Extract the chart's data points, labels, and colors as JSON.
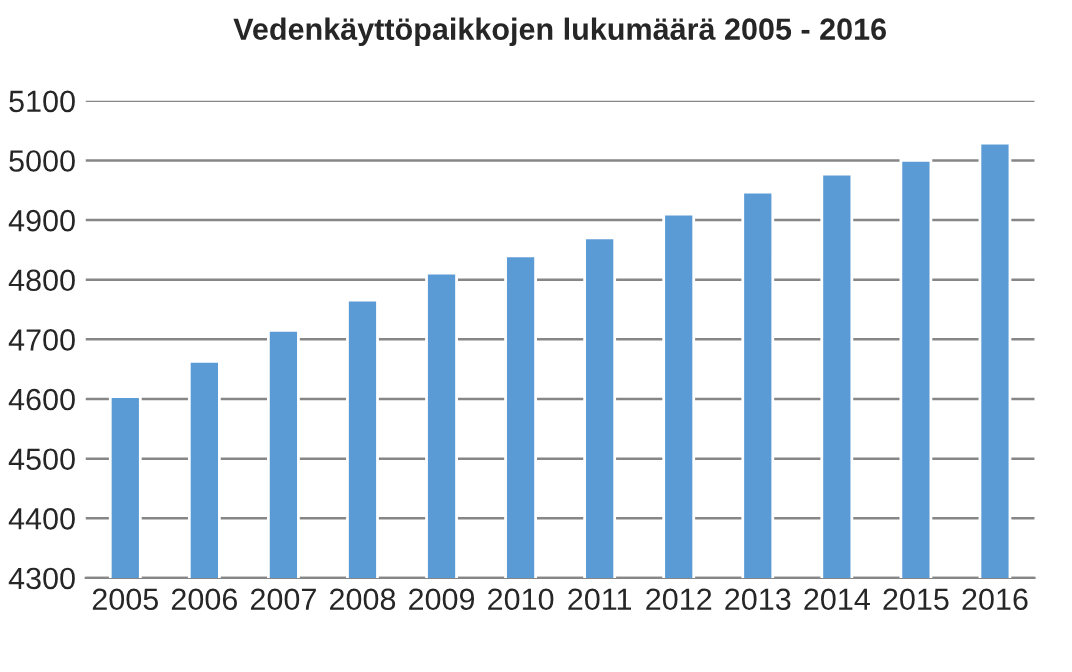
{
  "chart_data": {
    "type": "bar",
    "title": "Vedenkäyttöpaikkojen lukumäärä 2005 - 2016",
    "categories": [
      "2005",
      "2006",
      "2007",
      "2008",
      "2009",
      "2010",
      "2011",
      "2012",
      "2013",
      "2014",
      "2015",
      "2016"
    ],
    "values": [
      4604,
      4663,
      4715,
      4766,
      4811,
      4840,
      4870,
      4910,
      4947,
      4977,
      5000,
      5029
    ],
    "color": "#5b9bd5",
    "ylim": [
      4300,
      5100
    ],
    "yticks": [
      4300,
      4400,
      4500,
      4600,
      4700,
      4800,
      4900,
      5000,
      5100
    ],
    "grid": "y"
  }
}
